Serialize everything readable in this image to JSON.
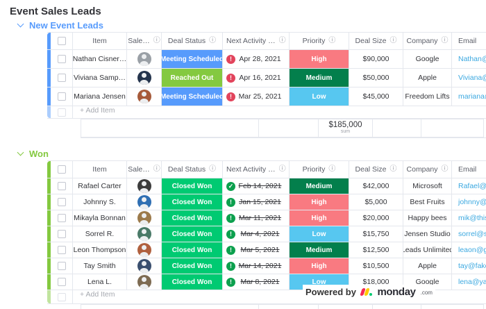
{
  "title": "Event Sales Leads",
  "columns": [
    {
      "key": "item",
      "label": "Item",
      "info": false
    },
    {
      "key": "sales",
      "label": "Sale…",
      "info": true
    },
    {
      "key": "status",
      "label": "Deal Status",
      "info": true
    },
    {
      "key": "next",
      "label": "Next Activity …",
      "info": true
    },
    {
      "key": "priority",
      "label": "Priority",
      "info": true
    },
    {
      "key": "deal",
      "label": "Deal Size",
      "info": true
    },
    {
      "key": "company",
      "label": "Company",
      "info": true
    },
    {
      "key": "email",
      "label": "Email",
      "info": false
    }
  ],
  "icons": {
    "info": "ⓘ",
    "alert": "!",
    "check": "✓"
  },
  "status_colors": {
    "Meeting Scheduled": "#579bfc",
    "Reached Out": "#84c940",
    "Closed Won": "#00ca72"
  },
  "priority_colors": {
    "High": "#f97a81",
    "Medium": "#037f4c",
    "Low": "#57c7f0"
  },
  "alert_colors": {
    "red": "#e2445c",
    "green": "#0ca04e",
    "check": "#0ca04e"
  },
  "groups": [
    {
      "name": "New Event Leads",
      "color": "#579bfc",
      "add_item_label": "+ Add Item",
      "rows": [
        {
          "item": "Nathan Cisner…",
          "avatar_color": "#9aa0a6",
          "status": "Meeting Scheduled",
          "alert": "red",
          "date": "Apr 28, 2021",
          "date_done": false,
          "priority": "High",
          "deal_size": "$90,000",
          "company": "Google",
          "email": "Nathan@"
        },
        {
          "item": "Viviana Samp…",
          "avatar_color": "#24344d",
          "status": "Reached Out",
          "alert": "red",
          "date": "Apr 16, 2021",
          "date_done": false,
          "priority": "Medium",
          "deal_size": "$50,000",
          "company": "Apple",
          "email": "Viviana@"
        },
        {
          "item": "Mariana Jensen",
          "avatar_color": "#a65a3a",
          "status": "Meeting Scheduled",
          "alert": "red",
          "date": "Mar 25, 2021",
          "date_done": false,
          "priority": "Low",
          "deal_size": "$45,000",
          "company": "Freedom Lifts",
          "email": "mariana@"
        }
      ],
      "summary": {
        "value": "$185,000",
        "label": "sum"
      }
    },
    {
      "name": "Won",
      "color": "#84c940",
      "add_item_label": "+ Add Item",
      "rows": [
        {
          "item": "Rafael Carter",
          "avatar_color": "#3c3c3c",
          "status": "Closed Won",
          "alert": "check",
          "date": "Feb 14, 2021",
          "date_done": true,
          "priority": "Medium",
          "deal_size": "$42,000",
          "company": "Microsoft",
          "email": "Rafael@"
        },
        {
          "item": "Johnny S.",
          "avatar_color": "#2f6fb3",
          "status": "Closed Won",
          "alert": "green",
          "date": "Jan 15, 2021",
          "date_done": true,
          "priority": "High",
          "deal_size": "$5,000",
          "company": "Best Fruits",
          "email": "johnny@y"
        },
        {
          "item": "Mikayla Bonnan",
          "avatar_color": "#9c7a4b",
          "status": "Closed Won",
          "alert": "green",
          "date": "Mar 11, 2021",
          "date_done": true,
          "priority": "High",
          "deal_size": "$20,000",
          "company": "Happy bees",
          "email": "mik@this"
        },
        {
          "item": "Sorrel R.",
          "avatar_color": "#4a7a68",
          "status": "Closed Won",
          "alert": "green",
          "date": "Mar 4, 2021",
          "date_done": true,
          "priority": "Low",
          "deal_size": "$15,750",
          "company": "Jensen Studio",
          "email": "sorrel@s"
        },
        {
          "item": "Leon Thompson",
          "avatar_color": "#b0603e",
          "status": "Closed Won",
          "alert": "green",
          "date": "Mar 5, 2021",
          "date_done": true,
          "priority": "Medium",
          "deal_size": "$12,500",
          "company": "Leads Unlimited",
          "email": "leaon@g"
        },
        {
          "item": "Tay Smith",
          "avatar_color": "#3a4f6e",
          "status": "Closed Won",
          "alert": "green",
          "date": "Mar 14, 2021",
          "date_done": true,
          "priority": "High",
          "deal_size": "$10,500",
          "company": "Apple",
          "email": "tay@fake"
        },
        {
          "item": "Lena L.",
          "avatar_color": "#7d6b52",
          "status": "Closed Won",
          "alert": "green",
          "date": "Mar 8, 2021",
          "date_done": true,
          "priority": "Low",
          "deal_size": "$18,000",
          "company": "Google",
          "email": "lena@ya"
        }
      ],
      "summary": {
        "value": "",
        "label": ""
      }
    }
  ],
  "powered_by": {
    "prefix": "Powered by",
    "brand": "monday",
    "suffix": ".com",
    "logo_colors": [
      "#f62b54",
      "#ffcb00",
      "#00ca72"
    ]
  }
}
